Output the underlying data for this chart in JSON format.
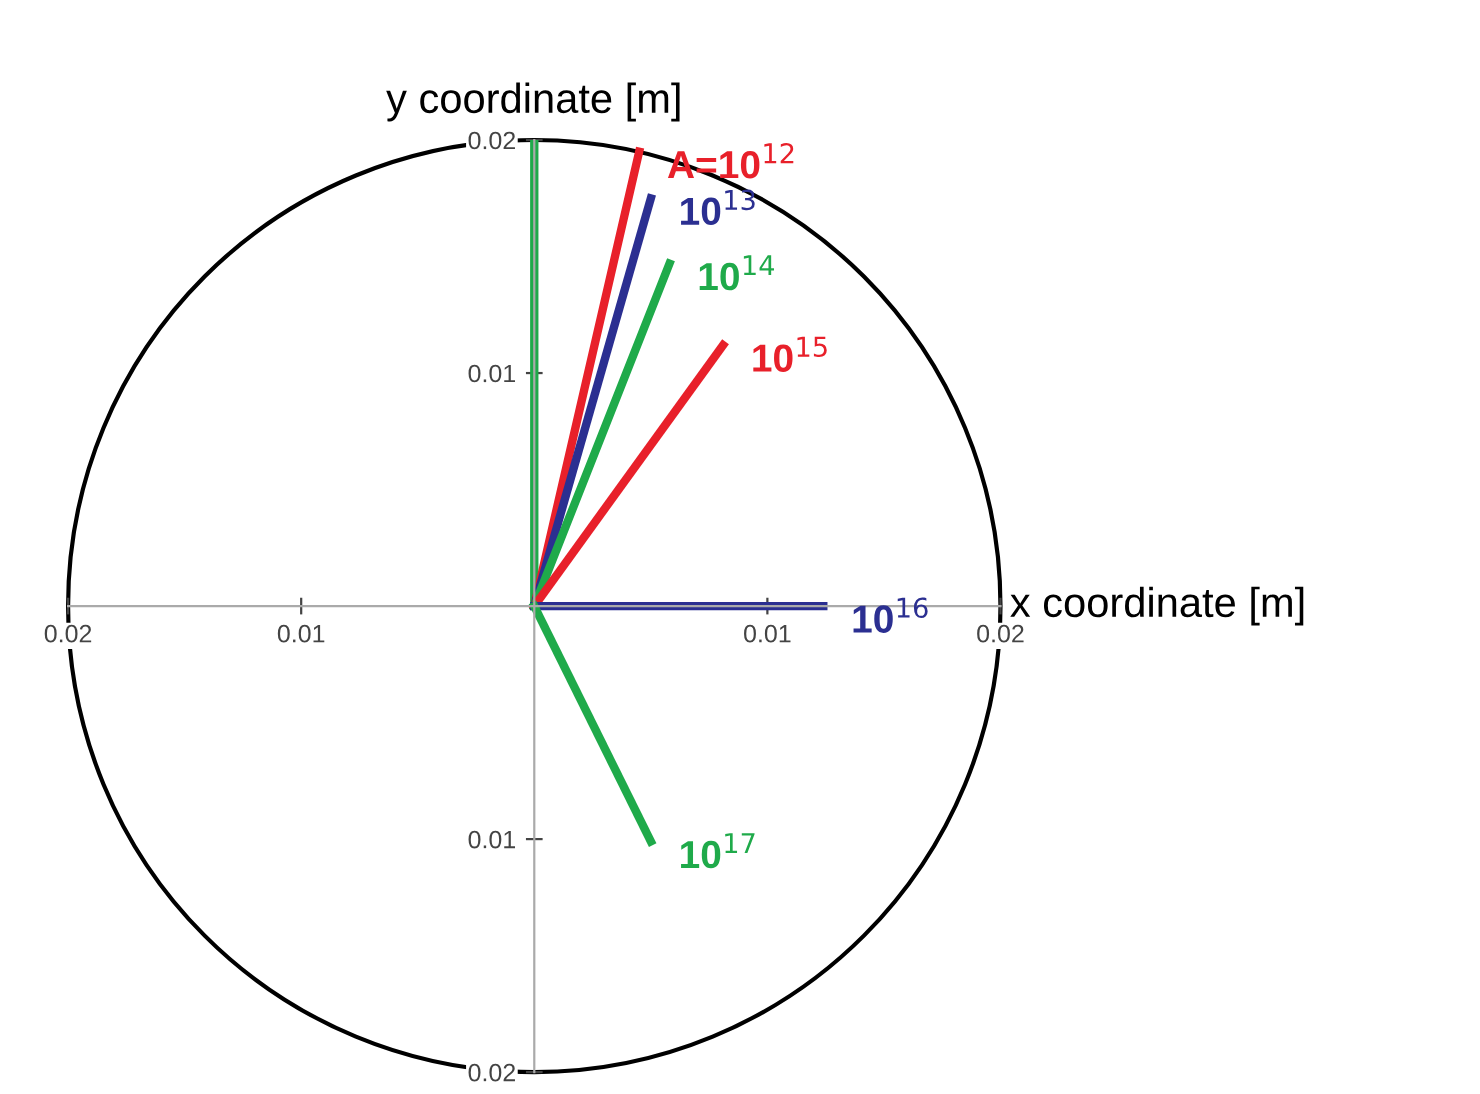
{
  "chart_data": {
    "type": "line",
    "xlabel": "x coordinate [m]",
    "ylabel": "y coordinate [m]",
    "xlim": [
      -0.02,
      0.02
    ],
    "ylim": [
      -0.02,
      0.02
    ],
    "xticks": [
      {
        "value": -0.02,
        "label": "0.02"
      },
      {
        "value": -0.01,
        "label": "0.01"
      },
      0.01,
      0.02
    ],
    "yticks": [
      {
        "value": -0.02,
        "label": "0.02"
      },
      {
        "value": -0.01,
        "label": "0.01"
      },
      0.01,
      0.02
    ],
    "grid": false,
    "legend": false,
    "marker": "none",
    "line_style": "solid",
    "series": [
      {
        "color": "#1faa4a",
        "x": [
          0,
          0
        ],
        "values": [
          0,
          0.02
        ]
      },
      {
        "name": "A=10$^{12}$",
        "color": "#e8202a",
        "x": [
          0,
          0.0045
        ],
        "values": [
          0,
          0.0195
        ]
      },
      {
        "name": "10$^{13}$",
        "color": "#2b2f91",
        "x": [
          0,
          0.005
        ],
        "values": [
          0,
          0.0175
        ]
      },
      {
        "name": "10$^{14}$",
        "color": "#1faa4a",
        "x": [
          0,
          0.0058
        ],
        "values": [
          0,
          0.0147
        ]
      },
      {
        "name": "10$^{15}$",
        "color": "#e8202a",
        "x": [
          0,
          0.0081
        ],
        "values": [
          0,
          0.0112
        ]
      },
      {
        "name": "10$^{16}$",
        "color": "#2b2f91",
        "x": [
          0,
          0.0124
        ],
        "values": [
          0,
          0
        ]
      },
      {
        "name": "10$^{17}$",
        "color": "#1faa4a",
        "x": [
          0,
          0.005
        ],
        "values": [
          0,
          -0.0101
        ]
      }
    ]
  }
}
